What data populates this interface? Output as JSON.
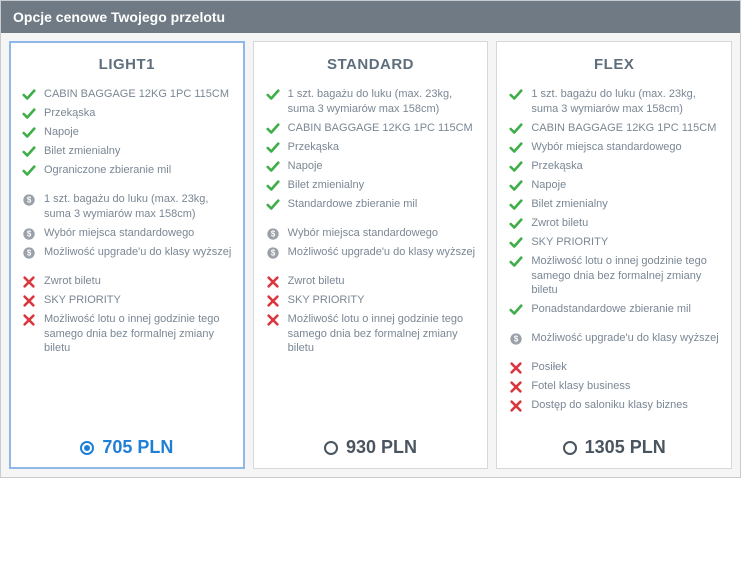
{
  "colors": {
    "header_bg": "#6f7a85",
    "header_text": "#ffffff",
    "panel_border": "#c8ccd0",
    "columns_bg": "#f5f5f5",
    "card_border": "#d6d9dc",
    "card_border_selected": "#8db8e8",
    "text_primary": "#6a7a8a",
    "text_muted": "#7a8794",
    "title_text": "#5f6e7d",
    "price_text": "#4a5560",
    "accent_selected": "#1f7fd6",
    "check_color": "#3fae49",
    "paid_color": "#9aa1a8",
    "cross_color": "#d9363e"
  },
  "header_title": "Opcje cenowe Twojego przelotu",
  "fares": [
    {
      "id": "light1",
      "title": "LIGHT1",
      "selected": true,
      "price": "705 PLN",
      "included": [
        "CABIN BAGGAGE 12KG 1PC 115CM",
        "Przekąska",
        "Napoje",
        "Bilet zmienialny",
        "Ograniczone zbieranie mil"
      ],
      "paid": [
        "1 szt. bagażu do luku (max. 23kg, suma 3 wymiarów max 158cm)",
        "Wybór miejsca standardowego",
        "Możliwość upgrade'u do klasy wyższej"
      ],
      "excluded": [
        "Zwrot biletu",
        "SKY PRIORITY",
        "Możliwość lotu o innej godzinie tego samego dnia bez formalnej zmiany biletu"
      ]
    },
    {
      "id": "standard",
      "title": "STANDARD",
      "selected": false,
      "price": "930 PLN",
      "included": [
        "1 szt. bagażu do luku (max. 23kg, suma 3 wymiarów max 158cm)",
        "CABIN BAGGAGE 12KG 1PC 115CM",
        "Przekąska",
        "Napoje",
        "Bilet zmienialny",
        "Standardowe zbieranie mil"
      ],
      "paid": [
        "Wybór miejsca standardowego",
        "Możliwość upgrade'u do klasy wyższej"
      ],
      "excluded": [
        "Zwrot biletu",
        "SKY PRIORITY",
        "Możliwość lotu o innej godzinie tego samego dnia bez formalnej zmiany biletu"
      ]
    },
    {
      "id": "flex",
      "title": "FLEX",
      "selected": false,
      "price": "1305 PLN",
      "included": [
        "1 szt. bagażu do luku (max. 23kg, suma 3 wymiarów max 158cm)",
        "CABIN BAGGAGE 12KG 1PC 115CM",
        "Wybór miejsca standardowego",
        "Przekąska",
        "Napoje",
        "Bilet zmienialny",
        "Zwrot biletu",
        "SKY PRIORITY",
        "Możliwość lotu o innej godzinie tego samego dnia bez formalnej zmiany biletu",
        "Ponadstandardowe zbieranie mil"
      ],
      "paid": [
        "Możliwość upgrade'u do klasy wyższej"
      ],
      "excluded": [
        "Posiłek",
        "Fotel klasy business",
        "Dostęp do saloniku klasy biznes"
      ]
    }
  ]
}
